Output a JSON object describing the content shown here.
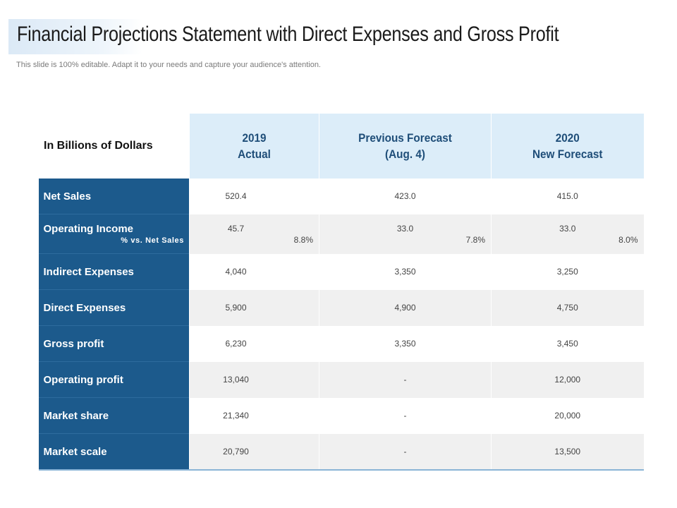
{
  "title": "Financial Projections Statement with Direct Expenses and Gross Profit",
  "subtitle": "This slide is 100% editable. Adapt it to your needs and capture your audience's attention.",
  "table": {
    "corner": "In Billions of Dollars",
    "columns": [
      {
        "line1": "2019",
        "line2": "Actual"
      },
      {
        "line1": "Previous Forecast",
        "line2": "(Aug. 4)"
      },
      {
        "line1": "2020",
        "line2": "New Forecast"
      }
    ],
    "operating_income": {
      "label": "Operating Income",
      "sublabel": "% vs. Net Sales",
      "values": [
        "45.7",
        "33.0",
        "33.0"
      ],
      "percents": [
        "8.8%",
        "7.8%",
        "8.0%"
      ]
    },
    "rows": [
      {
        "label": "Net Sales",
        "values": [
          "520.4",
          "423.0",
          "415.0"
        ]
      },
      {
        "label": "Indirect Expenses",
        "values": [
          "4,040",
          "3,350",
          "3,250"
        ]
      },
      {
        "label": "Direct Expenses",
        "values": [
          "5,900",
          "4,900",
          "4,750"
        ]
      },
      {
        "label": "Gross profit",
        "values": [
          "6,230",
          "3,350",
          "3,450"
        ]
      },
      {
        "label": "Operating profit",
        "values": [
          "13,040",
          "-",
          "12,000"
        ]
      },
      {
        "label": "Market share",
        "values": [
          "21,340",
          "-",
          "20,000"
        ]
      },
      {
        "label": "Market scale",
        "values": [
          "20,790",
          "-",
          "13,500"
        ]
      }
    ]
  }
}
